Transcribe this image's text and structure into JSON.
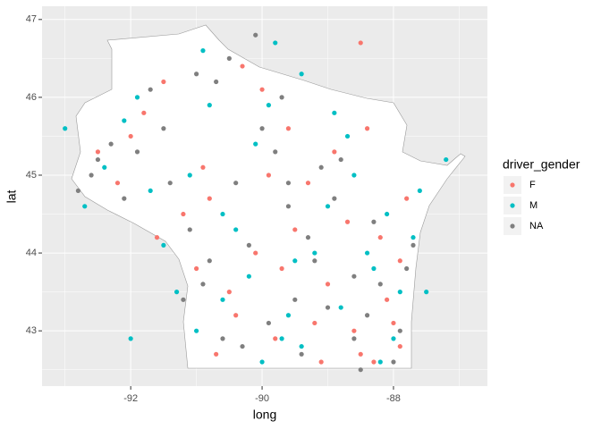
{
  "chart_data": {
    "type": "scatter",
    "x_label": "long",
    "y_label": "lat",
    "xlim": [
      -93.35,
      -86.57
    ],
    "ylim": [
      42.29,
      47.17
    ],
    "xticks": [
      -92,
      -90,
      -88
    ],
    "yticks": [
      43,
      44,
      45,
      46,
      47
    ],
    "x_minor_ticks": [
      -93,
      -91,
      -89,
      -87
    ],
    "y_minor_ticks": [
      42.5,
      43.5,
      44.5,
      45.5,
      46.5
    ],
    "grid": true,
    "legend_title": "driver_gender",
    "legend_position": "right",
    "series": [
      {
        "name": "F",
        "color": "#F8766D",
        "x": [
          -89.2,
          -88.5,
          -89.8,
          -90.5,
          -88.1,
          -87.9,
          -89.5,
          -91.2,
          -92.2,
          -90.9,
          -89.6,
          -91.5,
          -90.3,
          -88.5,
          -88.7,
          -88.2,
          -87.8,
          -90.1,
          -91.0,
          -89.0,
          -88.6,
          -90.7,
          -89.9,
          -92.5,
          -91.8,
          -89.3,
          -88.9,
          -90.4,
          -88.3,
          -89.1,
          -91.6,
          -87.9,
          -90.0,
          -88.4,
          -89.7,
          -92.0,
          -90.8,
          -88.0
        ],
        "y": [
          43.1,
          42.7,
          42.9,
          43.5,
          43.4,
          42.8,
          44.3,
          44.5,
          44.9,
          45.1,
          45.6,
          46.2,
          46.4,
          46.7,
          44.4,
          44.2,
          44.7,
          44.0,
          43.8,
          43.6,
          43.0,
          42.7,
          45.0,
          45.3,
          45.8,
          44.9,
          45.3,
          43.2,
          42.6,
          42.6,
          44.2,
          43.9,
          46.1,
          45.6,
          43.8,
          45.5,
          44.7,
          43.1
        ]
      },
      {
        "name": "M",
        "color": "#00BFC4",
        "x": [
          -89.4,
          -88.8,
          -90.2,
          -91.0,
          -88.0,
          -87.9,
          -89.0,
          -91.5,
          -92.4,
          -90.6,
          -89.9,
          -91.9,
          -90.9,
          -89.4,
          -88.6,
          -88.1,
          -87.6,
          -90.4,
          -91.3,
          -89.6,
          -88.3,
          -90.0,
          -89.2,
          -92.7,
          -92.1,
          -90.1,
          -88.9,
          -90.8,
          -88.4,
          -89.7,
          -91.7,
          -87.7,
          -89.8,
          -88.7,
          -90.6,
          -92.0,
          -93.0,
          -87.5,
          -87.2,
          -91.1,
          -89.5,
          -88.2
        ],
        "y": [
          42.8,
          43.3,
          43.7,
          43.0,
          42.9,
          43.5,
          44.6,
          44.1,
          45.1,
          44.5,
          45.9,
          46.0,
          46.6,
          46.3,
          45.0,
          44.5,
          44.8,
          44.3,
          43.5,
          43.2,
          43.8,
          42.6,
          44.0,
          44.6,
          45.7,
          45.4,
          45.8,
          45.9,
          44.0,
          42.9,
          44.8,
          44.2,
          46.7,
          45.5,
          43.4,
          42.9,
          45.6,
          43.5,
          45.2,
          45.0,
          43.9,
          42.6
        ]
      },
      {
        "name": "NA",
        "color": "#7F7F7F",
        "x": [
          -89.0,
          -88.6,
          -90.3,
          -90.8,
          -88.2,
          -87.9,
          -89.3,
          -91.4,
          -92.6,
          -91.1,
          -89.8,
          -91.7,
          -90.5,
          -89.7,
          -88.9,
          -88.3,
          -87.7,
          -90.2,
          -91.2,
          -89.5,
          -88.4,
          -90.6,
          -89.6,
          -92.8,
          -92.3,
          -90.0,
          -89.1,
          -90.7,
          -88.6,
          -89.4,
          -91.9,
          -87.8,
          -90.1,
          -88.8,
          -89.9,
          -92.1,
          -91.5,
          -90.4,
          -89.2,
          -88.0,
          -91.0,
          -92.5,
          -90.9,
          -89.6,
          -88.5
        ],
        "y": [
          43.3,
          42.9,
          42.8,
          43.9,
          43.6,
          43.0,
          44.2,
          44.9,
          45.0,
          44.3,
          45.3,
          46.1,
          46.5,
          46.0,
          44.7,
          44.4,
          44.1,
          44.1,
          43.4,
          43.4,
          43.2,
          42.9,
          44.6,
          44.8,
          45.4,
          45.6,
          45.1,
          46.2,
          43.7,
          42.7,
          45.3,
          43.8,
          46.8,
          45.2,
          43.1,
          44.7,
          45.6,
          44.9,
          43.9,
          42.6,
          46.3,
          45.2,
          43.6,
          44.9,
          42.5
        ]
      }
    ]
  }
}
